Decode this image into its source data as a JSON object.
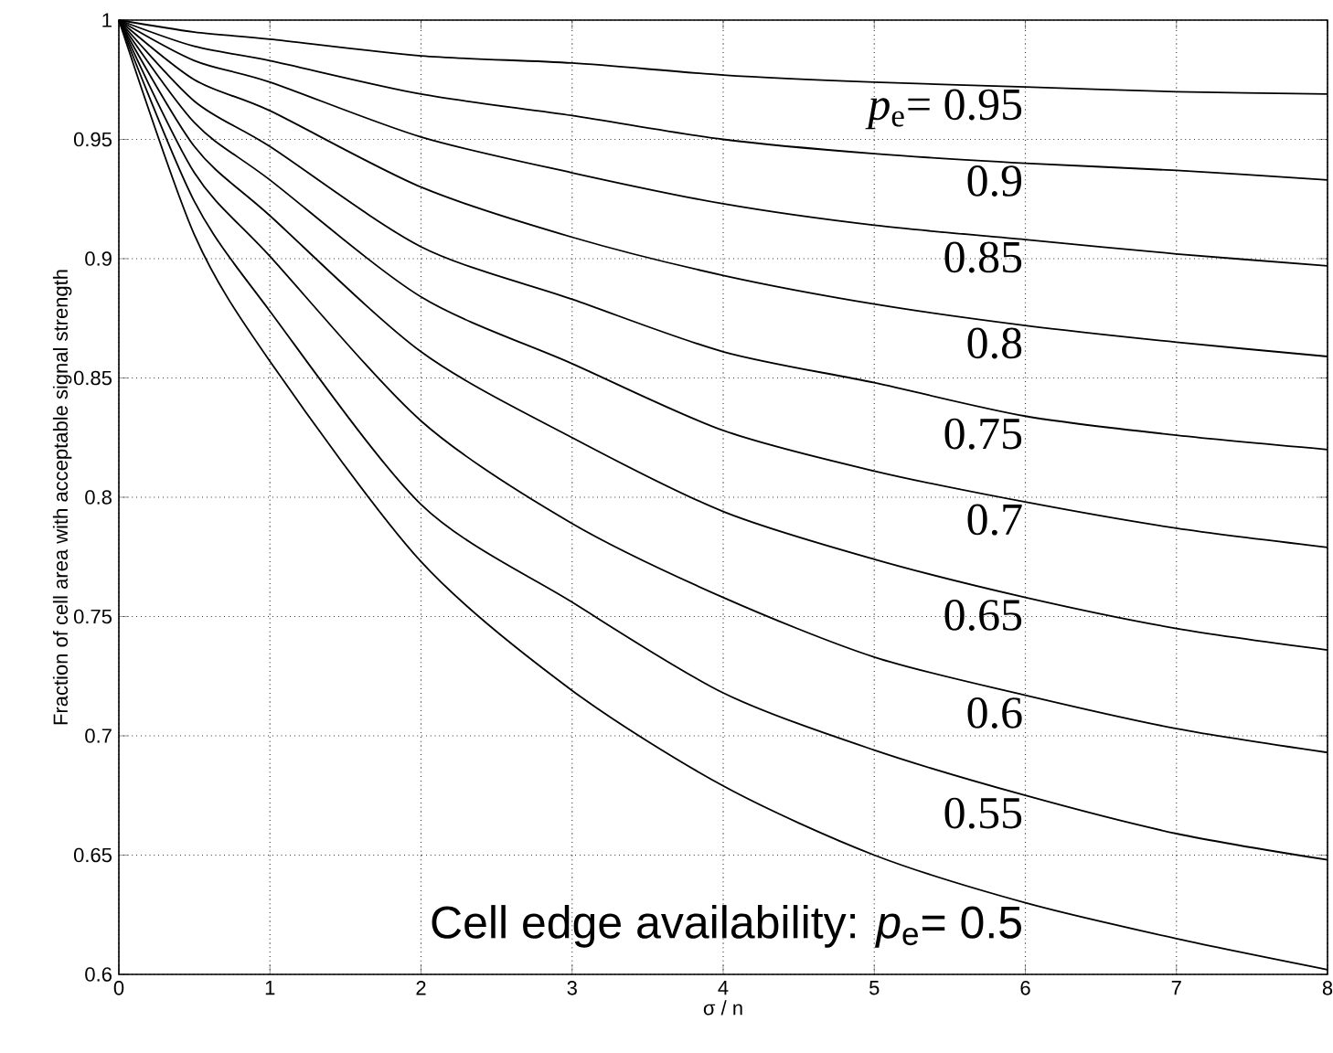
{
  "chart_data": {
    "type": "line",
    "xlabel": "σ / n",
    "ylabel": "Fraction of cell area with acceptable signal strength",
    "x": [
      0,
      0.5,
      1,
      2,
      3,
      4,
      5,
      6,
      7,
      8
    ],
    "xlim": [
      0,
      8
    ],
    "ylim": [
      0.6,
      1
    ],
    "xticks": [
      0,
      1,
      2,
      3,
      4,
      5,
      6,
      7,
      8
    ],
    "yticks": [
      0.6,
      0.65,
      0.7,
      0.75,
      0.8,
      0.85,
      0.9,
      0.95,
      1
    ],
    "grid": true,
    "legend": false,
    "line_style": "solid",
    "series": [
      {
        "name": "*p*$_{e}$= 0.95",
        "color": "#000000",
        "values": [
          1,
          0.995,
          0.992,
          0.985,
          0.982,
          0.977,
          0.974,
          0.972,
          0.97,
          0.969
        ]
      },
      {
        "name": "0.9",
        "color": "#000000",
        "values": [
          1,
          0.989,
          0.983,
          0.969,
          0.96,
          0.95,
          0.944,
          0.94,
          0.937,
          0.933
        ]
      },
      {
        "name": "0.85",
        "color": "#000000",
        "values": [
          1,
          0.983,
          0.974,
          0.951,
          0.936,
          0.923,
          0.914,
          0.908,
          0.902,
          0.897
        ]
      },
      {
        "name": "0.8",
        "color": "#000000",
        "values": [
          1,
          0.975,
          0.962,
          0.93,
          0.909,
          0.893,
          0.881,
          0.872,
          0.865,
          0.859
        ]
      },
      {
        "name": "0.75",
        "color": "#000000",
        "values": [
          1,
          0.966,
          0.947,
          0.905,
          0.883,
          0.861,
          0.848,
          0.834,
          0.826,
          0.82
        ]
      },
      {
        "name": "0.7",
        "color": "#000000",
        "values": [
          1,
          0.957,
          0.933,
          0.884,
          0.856,
          0.828,
          0.811,
          0.798,
          0.787,
          0.779
        ]
      },
      {
        "name": "0.65",
        "color": "#000000",
        "values": [
          1,
          0.947,
          0.918,
          0.861,
          0.825,
          0.794,
          0.774,
          0.758,
          0.745,
          0.736
        ]
      },
      {
        "name": "0.6",
        "color": "#000000",
        "values": [
          1,
          0.936,
          0.901,
          0.832,
          0.789,
          0.758,
          0.733,
          0.717,
          0.703,
          0.693
        ]
      },
      {
        "name": "0.55",
        "color": "#000000",
        "values": [
          1,
          0.924,
          0.878,
          0.797,
          0.756,
          0.718,
          0.694,
          0.675,
          0.659,
          0.648
        ]
      },
      {
        "name": "Cell edge availability: *p*$_{e}$= 0.5",
        "color": "#000000",
        "values": [
          1,
          0.91,
          0.857,
          0.773,
          0.719,
          0.679,
          0.65,
          0.63,
          0.615,
          0.602
        ]
      }
    ]
  }
}
